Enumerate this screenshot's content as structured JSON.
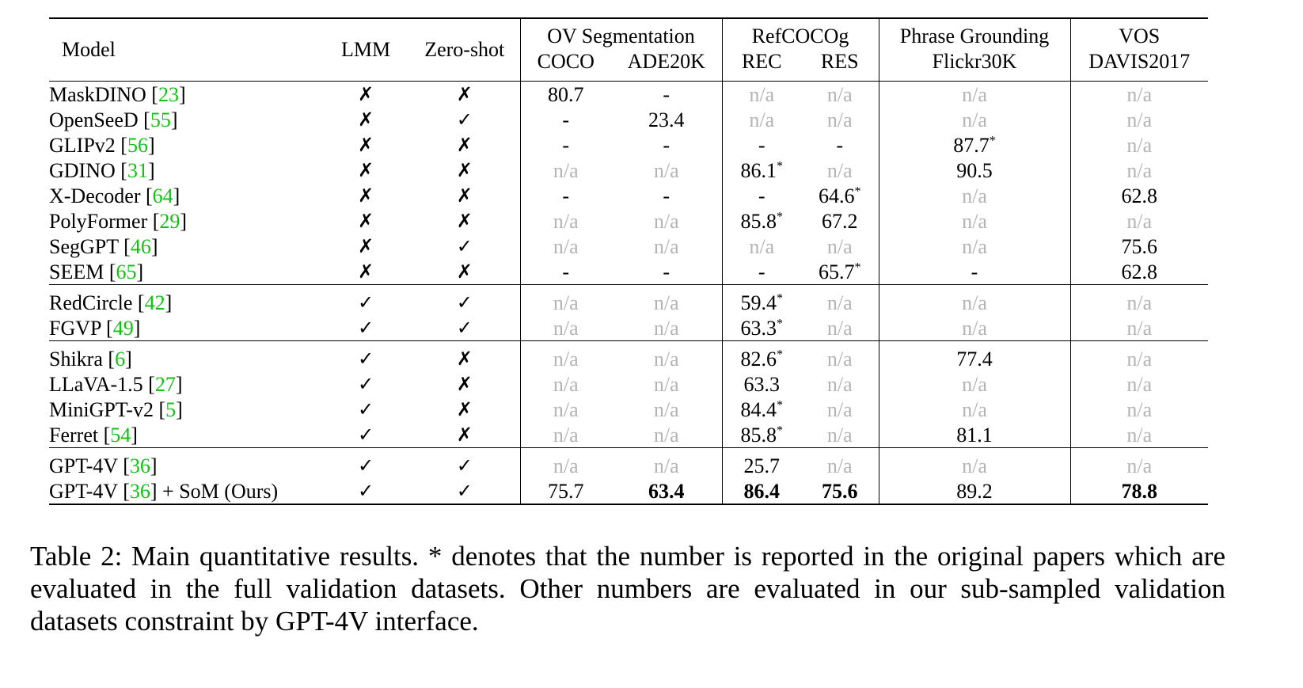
{
  "table": {
    "headers": {
      "model": "Model",
      "lmm": "LMM",
      "zero_shot": "Zero-shot",
      "ov_seg": "OV Segmentation",
      "coco": "COCO",
      "ade20k": "ADE20K",
      "refcocog": "RefCOCOg",
      "rec": "REC",
      "res": "RES",
      "phrase_grounding": "Phrase Grounding",
      "flickr30k": "Flickr30K",
      "vos": "VOS",
      "davis2017": "DAVIS2017"
    },
    "groups": [
      {
        "rows": [
          {
            "name": "MaskDINO",
            "cite": "23",
            "suffix": "",
            "lmm": "✗",
            "zs": "✗",
            "coco": "80.7",
            "ade": "-",
            "rec": "n/a",
            "res": "n/a",
            "flickr": "n/a",
            "davis": "n/a"
          },
          {
            "name": "OpenSeeD",
            "cite": "55",
            "suffix": "",
            "lmm": "✗",
            "zs": "✓",
            "coco": "-",
            "ade": "23.4",
            "rec": "n/a",
            "res": "n/a",
            "flickr": "n/a",
            "davis": "n/a"
          },
          {
            "name": "GLIPv2",
            "cite": "56",
            "suffix": "",
            "lmm": "✗",
            "zs": "✗",
            "coco": "-",
            "ade": "-",
            "rec": "-",
            "res": "-",
            "flickr": "87.7*",
            "davis": "n/a"
          },
          {
            "name": "GDINO",
            "cite": "31",
            "suffix": "",
            "lmm": "✗",
            "zs": "✗",
            "coco": "n/a",
            "ade": "n/a",
            "rec": "86.1*",
            "res": "n/a",
            "flickr": "90.5",
            "davis": "n/a"
          },
          {
            "name": "X-Decoder",
            "cite": "64",
            "suffix": "",
            "lmm": "✗",
            "zs": "✗",
            "coco": "-",
            "ade": "-",
            "rec": "-",
            "res": "64.6*",
            "flickr": "n/a",
            "davis": "62.8"
          },
          {
            "name": "PolyFormer",
            "cite": "29",
            "suffix": "",
            "lmm": "✗",
            "zs": "✗",
            "coco": "n/a",
            "ade": "n/a",
            "rec": "85.8*",
            "res": "67.2",
            "flickr": "n/a",
            "davis": "n/a"
          },
          {
            "name": "SegGPT",
            "cite": "46",
            "suffix": "",
            "lmm": "✗",
            "zs": "✓",
            "coco": "n/a",
            "ade": "n/a",
            "rec": "n/a",
            "res": "n/a",
            "flickr": "n/a",
            "davis": "75.6"
          },
          {
            "name": "SEEM",
            "cite": "65",
            "suffix": "",
            "lmm": "✗",
            "zs": "✗",
            "coco": "-",
            "ade": "-",
            "rec": "-",
            "res": "65.7*",
            "flickr": "-",
            "davis": "62.8"
          }
        ]
      },
      {
        "rows": [
          {
            "name": "RedCircle",
            "cite": "42",
            "suffix": "",
            "lmm": "✓",
            "zs": "✓",
            "coco": "n/a",
            "ade": "n/a",
            "rec": "59.4*",
            "res": "n/a",
            "flickr": "n/a",
            "davis": "n/a"
          },
          {
            "name": "FGVP",
            "cite": "49",
            "suffix": "",
            "lmm": "✓",
            "zs": "✓",
            "coco": "n/a",
            "ade": "n/a",
            "rec": "63.3*",
            "res": "n/a",
            "flickr": "n/a",
            "davis": "n/a"
          }
        ]
      },
      {
        "rows": [
          {
            "name": "Shikra",
            "cite": "6",
            "suffix": "",
            "lmm": "✓",
            "zs": "✗",
            "coco": "n/a",
            "ade": "n/a",
            "rec": "82.6*",
            "res": "n/a",
            "flickr": "77.4",
            "davis": "n/a"
          },
          {
            "name": "LLaVA-1.5",
            "cite": "27",
            "suffix": "",
            "lmm": "✓",
            "zs": "✗",
            "coco": "n/a",
            "ade": "n/a",
            "rec": "63.3",
            "res": "n/a",
            "flickr": "n/a",
            "davis": "n/a"
          },
          {
            "name": "MiniGPT-v2",
            "cite": "5",
            "suffix": "",
            "lmm": "✓",
            "zs": "✗",
            "coco": "n/a",
            "ade": "n/a",
            "rec": "84.4*",
            "res": "n/a",
            "flickr": "n/a",
            "davis": "n/a"
          },
          {
            "name": "Ferret",
            "cite": "54",
            "suffix": "",
            "lmm": "✓",
            "zs": "✗",
            "coco": "n/a",
            "ade": "n/a",
            "rec": "85.8*",
            "res": "n/a",
            "flickr": "81.1",
            "davis": "n/a"
          }
        ]
      },
      {
        "rows": [
          {
            "name": "GPT-4V",
            "cite": "36",
            "suffix": "",
            "lmm": "✓",
            "zs": "✓",
            "coco": "n/a",
            "ade": "n/a",
            "rec": "25.7",
            "res": "n/a",
            "flickr": "n/a",
            "davis": "n/a"
          },
          {
            "name": "GPT-4V",
            "cite": "36",
            "suffix": " + SoM (Ours)",
            "lmm": "✓",
            "zs": "✓",
            "coco": "75.7",
            "ade": "63.4",
            "rec": "86.4",
            "res": "75.6",
            "flickr": "89.2",
            "davis": "78.8",
            "bold": [
              "ade",
              "rec",
              "res",
              "davis"
            ]
          }
        ]
      }
    ]
  },
  "caption": "Table 2: Main quantitative results. * denotes that the number is reported in the original papers which are evaluated in the full validation datasets. Other numbers are evaluated in our sub-sampled validation datasets constraint by GPT-4V interface."
}
